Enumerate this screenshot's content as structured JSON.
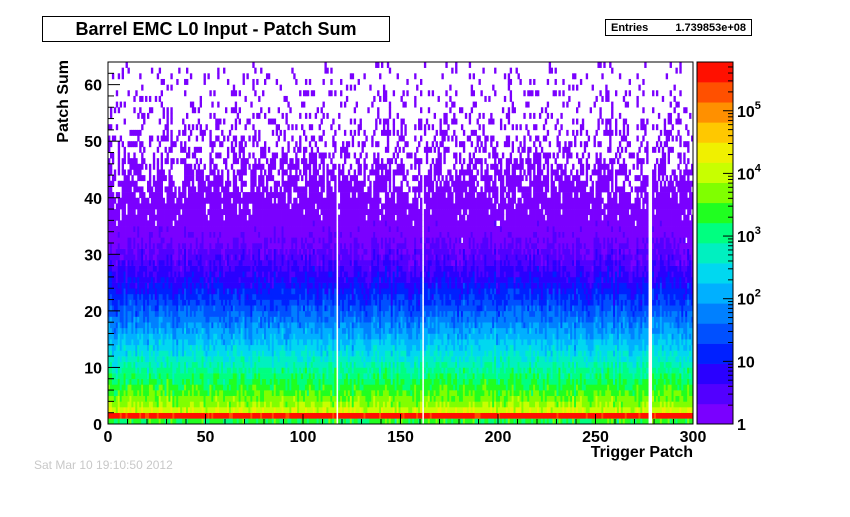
{
  "chart_data": {
    "type": "heatmap",
    "title": "Barrel EMC L0 Input - Patch Sum",
    "xlabel": "Trigger Patch",
    "ylabel": "Patch Sum",
    "xlim": [
      0,
      300
    ],
    "ylim": [
      0,
      64
    ],
    "x_ticks": [
      "0",
      "50",
      "100",
      "150",
      "200",
      "250",
      "300"
    ],
    "y_ticks": [
      "0",
      "10",
      "20",
      "30",
      "40",
      "50",
      "60"
    ],
    "z_scale": "log",
    "z_range": [
      1,
      600000
    ],
    "z_tick_labels": [
      "1",
      "10",
      "10^2",
      "10^3",
      "10^4",
      "10^5"
    ],
    "palette": [
      "#7a00ff",
      "#5200ff",
      "#2a00ff",
      "#0020ff",
      "#0050ff",
      "#0080ff",
      "#00b0ff",
      "#00d8f0",
      "#00f0c0",
      "#00ff80",
      "#20ff20",
      "#80ff00",
      "#c8ff00",
      "#f0f000",
      "#ffc800",
      "#ff9000",
      "#ff5000",
      "#ff1000"
    ],
    "dead_patches": [
      117,
      161,
      277,
      278
    ],
    "stats": {
      "label": "Entries",
      "value": "1.739853e+08"
    }
  },
  "footer": "Sat Mar 10 19:10:50 2012"
}
